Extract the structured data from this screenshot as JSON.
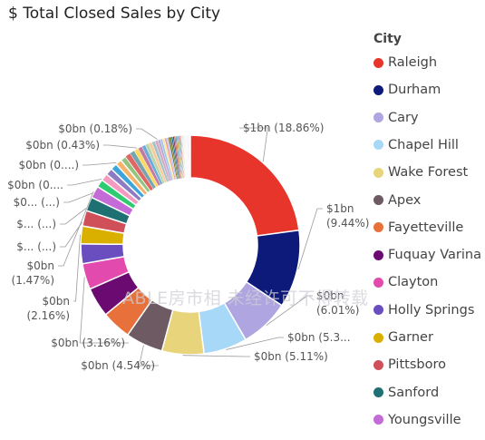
{
  "title": "$ Total Closed Sales by City",
  "legend": {
    "title": "City",
    "items": [
      {
        "label": "Raleigh",
        "color": "#E8352B"
      },
      {
        "label": "Durham",
        "color": "#0D1A7A"
      },
      {
        "label": "Cary",
        "color": "#AFA5E0"
      },
      {
        "label": "Chapel Hill",
        "color": "#A7D8F8"
      },
      {
        "label": "Wake Forest",
        "color": "#E8D47A"
      },
      {
        "label": "Apex",
        "color": "#6E5A63"
      },
      {
        "label": "Fayetteville",
        "color": "#E8703A"
      },
      {
        "label": "Fuquay Varina",
        "color": "#6B0B72"
      },
      {
        "label": "Clayton",
        "color": "#E24AAE"
      },
      {
        "label": "Holly Springs",
        "color": "#6A4EC0"
      },
      {
        "label": "Garner",
        "color": "#D9B000"
      },
      {
        "label": "Pittsboro",
        "color": "#D0505A"
      },
      {
        "label": "Sanford",
        "color": "#1E7072"
      },
      {
        "label": "Youngsville",
        "color": "#C56BD8"
      }
    ]
  },
  "watermark": "ABLE房市相 未经许可不得转载",
  "chart_data": {
    "type": "pie",
    "donut": true,
    "title": "$ Total Closed Sales by City",
    "categories": [
      "Raleigh",
      "Durham",
      "Cary",
      "Chapel Hill",
      "Wake Forest",
      "Apex",
      "Fayetteville",
      "Fuquay Varina",
      "Clayton",
      "Holly Springs",
      "Garner",
      "Pittsboro",
      "Sanford",
      "Youngsville"
    ],
    "values": [
      18.86,
      9.44,
      6.01,
      5.3,
      5.11,
      4.54,
      3.6,
      3.6,
      3.16,
      2.4,
      2.16,
      1.9,
      1.7,
      1.47
    ],
    "tail_values": [
      0.95,
      0.9,
      0.85,
      0.8,
      0.75,
      0.7,
      0.65,
      0.6,
      0.55,
      0.5,
      0.45,
      0.43,
      0.42,
      0.4,
      0.35,
      0.3,
      0.28,
      0.26,
      0.24,
      0.22,
      0.2,
      0.18,
      0.17,
      0.16,
      0.15,
      0.14,
      0.13,
      0.12,
      0.11,
      0.1,
      0.1,
      0.09,
      0.09,
      0.08,
      0.08,
      0.07,
      0.07,
      0.06,
      0.06,
      0.05,
      0.05,
      0.05,
      0.04,
      0.04,
      0.04,
      0.03,
      0.03,
      0.03,
      0.03,
      0.02,
      0.02,
      0.02,
      0.02,
      0.02,
      0.02
    ],
    "tail_colors": [
      "#2ECC71",
      "#F49AC1",
      "#8E7CC3",
      "#3DA5D9",
      "#F6B26B",
      "#93C47D",
      "#E06666",
      "#76A5AF",
      "#FFD966",
      "#C27BA0",
      "#6FA8DC",
      "#B6D7A8",
      "#F9CB9C",
      "#A2C4C9",
      "#D5A6BD",
      "#B4A7D6",
      "#9FC5E8",
      "#FFE599",
      "#EA9999",
      "#A4C2F4",
      "#7F6000",
      "#38761D",
      "#0B5394",
      "#741B47",
      "#CC4125",
      "#45818E",
      "#BF9000",
      "#3C78D8",
      "#6AA84F",
      "#A61C00",
      "#999999",
      "#CCCCCC",
      "#E6B8AF",
      "#D9EAD3",
      "#CFE2F3",
      "#FCE5CD",
      "#EAD1DC",
      "#D9D2E9",
      "#C9DAF8",
      "#FFF2CC",
      "#F4CCCC",
      "#D0E0E3",
      "#B7B7B7",
      "#8C8C8C",
      "#5B5B5B",
      "#E0E0E0",
      "#A0A0A0",
      "#C0C0C0",
      "#707070",
      "#BDBDBD",
      "#9E9E9E",
      "#D4D4D4",
      "#ADADAD",
      "#8A8A8A",
      "#C8C8C8"
    ],
    "data_labels": [
      {
        "text": "$1bn (18.86%)",
        "lines": [
          "$1bn (18.86%)"
        ],
        "anchor": "start",
        "slice": "Raleigh"
      },
      {
        "text": "$1bn (9.44%)",
        "lines": [
          "$1bn",
          "(9.44%)"
        ],
        "anchor": "start",
        "slice": "Durham"
      },
      {
        "text": "$0bn (6.01%)",
        "lines": [
          "$0bn",
          "(6.01%)"
        ],
        "anchor": "start",
        "slice": "Cary"
      },
      {
        "text": "$0bn (5.3...",
        "lines": [
          "$0bn (5.3..."
        ],
        "anchor": "start",
        "slice": "Chapel Hill"
      },
      {
        "text": "$0bn (5.11%)",
        "lines": [
          "$0bn (5.11%)"
        ],
        "anchor": "start",
        "slice": "Wake Forest"
      },
      {
        "text": "$0bn (4.54%)",
        "lines": [
          "$0bn (4.54%)"
        ],
        "anchor": "end",
        "slice": "Apex"
      },
      {
        "text": "$0bn (3.16%)",
        "lines": [
          "$0bn (3.16%)"
        ],
        "anchor": "end",
        "slice": "Clayton"
      },
      {
        "text": "$0bn (2.16%)",
        "lines": [
          "$0bn",
          "(2.16%)"
        ],
        "anchor": "end",
        "slice": "Garner"
      },
      {
        "text": "$0bn (1.47%)",
        "lines": [
          "$0bn",
          "(1.47%)"
        ],
        "anchor": "end",
        "slice": "Youngsville"
      },
      {
        "text": "$... (...)",
        "lines": [
          "$... (...)"
        ],
        "anchor": "end",
        "slice": "tail"
      },
      {
        "text": "$... (...)",
        "lines": [
          "$... (...)"
        ],
        "anchor": "end",
        "slice": "tail"
      },
      {
        "text": "$0... (...)",
        "lines": [
          "$0... (...)"
        ],
        "anchor": "end",
        "slice": "tail"
      },
      {
        "text": "$0bn (0....)",
        "lines": [
          "$0bn (0...."
        ],
        "anchor": "end",
        "slice": "tail"
      },
      {
        "text": "$0bn (0....)",
        "lines": [
          "$0bn (0....)"
        ],
        "anchor": "end",
        "slice": "tail"
      },
      {
        "text": "$0bn (0.43%)",
        "lines": [
          "$0bn (0.43%)"
        ],
        "anchor": "end",
        "slice": "tail"
      },
      {
        "text": "$0bn (0.18%)",
        "lines": [
          "$0bn (0.18%)"
        ],
        "anchor": "end",
        "slice": "tail"
      }
    ]
  }
}
